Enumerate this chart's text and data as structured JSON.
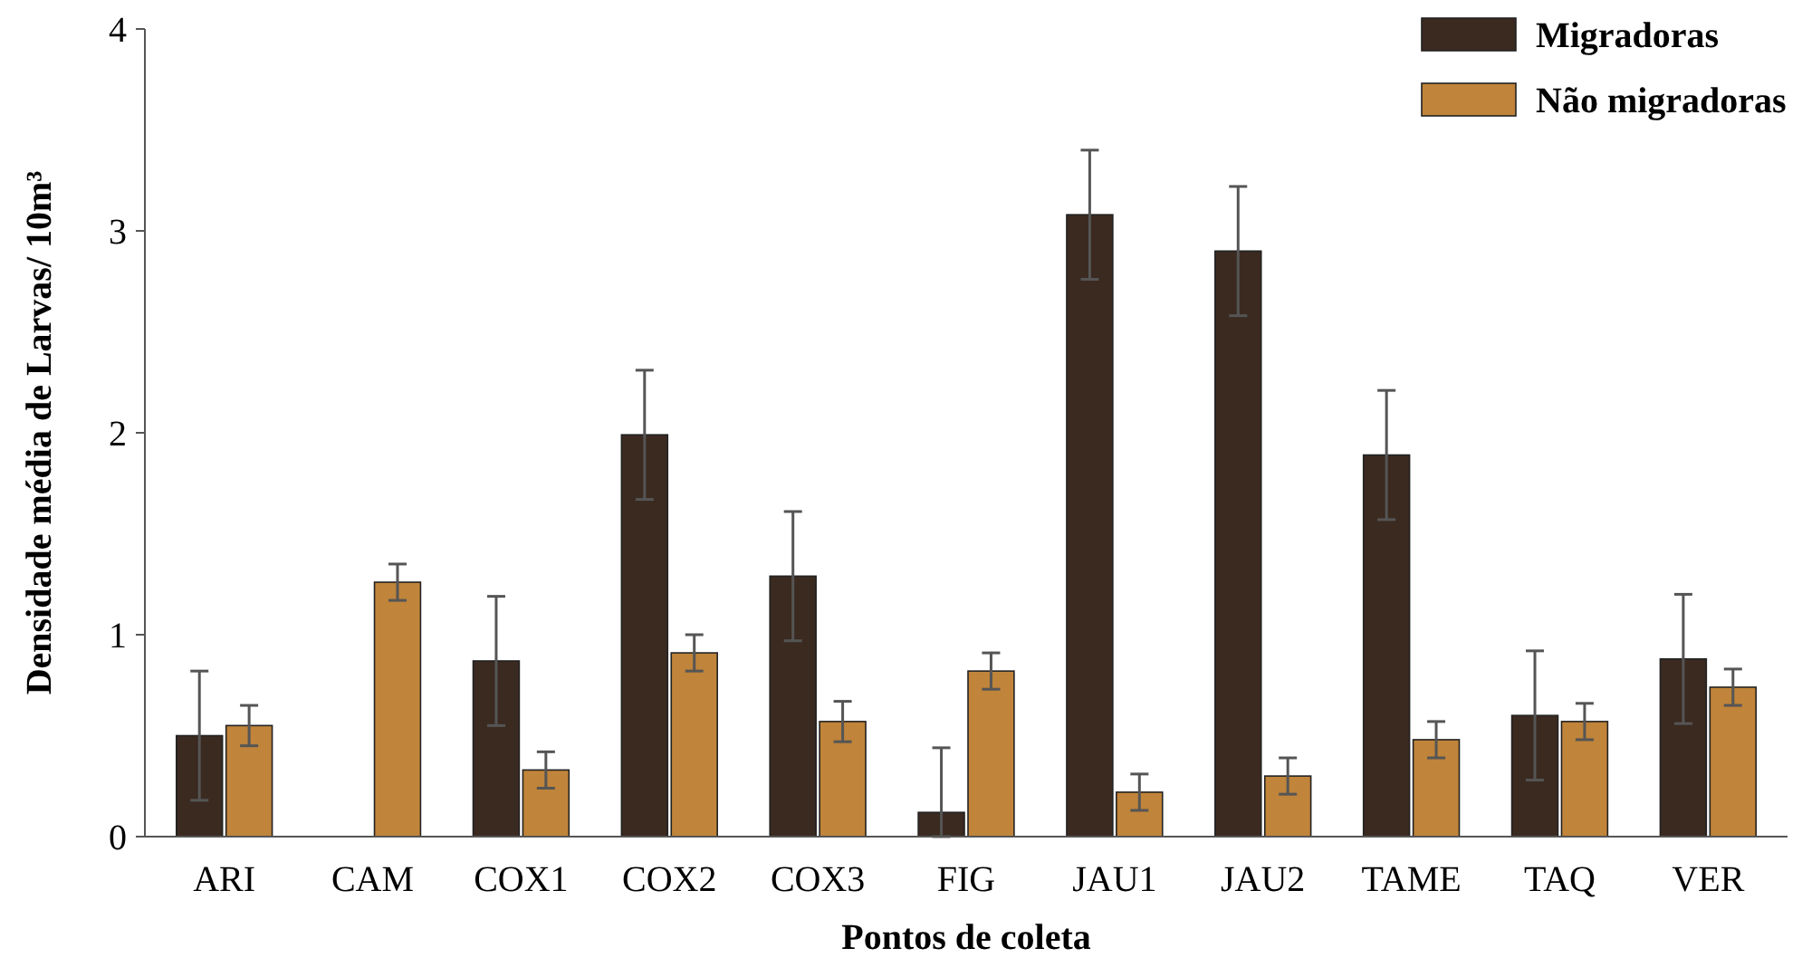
{
  "chart_data": {
    "type": "bar",
    "xlabel": "Pontos de coleta",
    "ylabel": "Densidade média de Larvas/ 10m³",
    "categories": [
      "ARI",
      "CAM",
      "COX1",
      "COX2",
      "COX3",
      "FIG",
      "JAU1",
      "JAU2",
      "TAME",
      "TAQ",
      "VER"
    ],
    "series": [
      {
        "name": "Migradoras",
        "color": "#3b2a20",
        "values": [
          0.5,
          0,
          0.87,
          1.99,
          1.29,
          0.12,
          3.08,
          2.9,
          1.89,
          0.6,
          0.88
        ],
        "errors": [
          0.32,
          null,
          0.32,
          0.32,
          0.32,
          [
            0,
            0.44
          ],
          0.32,
          0.32,
          0.32,
          0.32,
          0.32
        ]
      },
      {
        "name": "Não migradoras",
        "color": "#c0843a",
        "values": [
          0.55,
          1.26,
          0.33,
          0.91,
          0.57,
          0.82,
          0.22,
          0.3,
          0.48,
          0.57,
          0.74
        ],
        "errors": [
          0.1,
          0.09,
          0.09,
          0.09,
          0.1,
          0.09,
          0.09,
          0.09,
          0.09,
          0.09,
          0.09
        ]
      }
    ],
    "ylim": [
      0,
      4
    ],
    "yticks": [
      0,
      1,
      2,
      3,
      4
    ],
    "grid": false,
    "legend": "top right"
  }
}
